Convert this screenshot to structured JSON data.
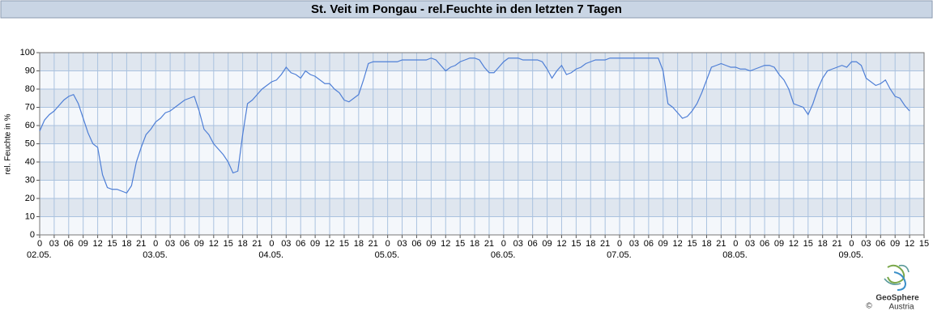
{
  "chart_data": {
    "type": "line",
    "title": "St. Veit im Pongau - rel.Feuchte in den letzten 7 Tagen",
    "y_label": "rel. Feuchte in %",
    "xlim": [
      0,
      183
    ],
    "ylim": [
      0,
      100
    ],
    "yticks": [
      0,
      10,
      20,
      30,
      40,
      50,
      60,
      70,
      80,
      90,
      100
    ],
    "xticks": [
      {
        "value": 0,
        "label": "0"
      },
      {
        "value": 3,
        "label": "03"
      },
      {
        "value": 6,
        "label": "06"
      },
      {
        "value": 9,
        "label": "09"
      },
      {
        "value": 12,
        "label": "12"
      },
      {
        "value": 15,
        "label": "15"
      },
      {
        "value": 18,
        "label": "18"
      },
      {
        "value": 21,
        "label": "21"
      },
      {
        "value": 24,
        "label": "0"
      },
      {
        "value": 27,
        "label": "03"
      },
      {
        "value": 30,
        "label": "06"
      },
      {
        "value": 33,
        "label": "09"
      },
      {
        "value": 36,
        "label": "12"
      },
      {
        "value": 39,
        "label": "15"
      },
      {
        "value": 42,
        "label": "18"
      },
      {
        "value": 45,
        "label": "21"
      },
      {
        "value": 48,
        "label": "0"
      },
      {
        "value": 51,
        "label": "03"
      },
      {
        "value": 54,
        "label": "06"
      },
      {
        "value": 57,
        "label": "09"
      },
      {
        "value": 60,
        "label": "12"
      },
      {
        "value": 63,
        "label": "15"
      },
      {
        "value": 66,
        "label": "18"
      },
      {
        "value": 69,
        "label": "21"
      },
      {
        "value": 72,
        "label": "0"
      },
      {
        "value": 75,
        "label": "03"
      },
      {
        "value": 78,
        "label": "06"
      },
      {
        "value": 81,
        "label": "09"
      },
      {
        "value": 84,
        "label": "12"
      },
      {
        "value": 87,
        "label": "15"
      },
      {
        "value": 90,
        "label": "18"
      },
      {
        "value": 93,
        "label": "21"
      },
      {
        "value": 96,
        "label": "0"
      },
      {
        "value": 99,
        "label": "03"
      },
      {
        "value": 102,
        "label": "06"
      },
      {
        "value": 105,
        "label": "09"
      },
      {
        "value": 108,
        "label": "12"
      },
      {
        "value": 111,
        "label": "15"
      },
      {
        "value": 114,
        "label": "18"
      },
      {
        "value": 117,
        "label": "21"
      },
      {
        "value": 120,
        "label": "0"
      },
      {
        "value": 123,
        "label": "03"
      },
      {
        "value": 126,
        "label": "06"
      },
      {
        "value": 129,
        "label": "09"
      },
      {
        "value": 132,
        "label": "12"
      },
      {
        "value": 135,
        "label": "15"
      },
      {
        "value": 138,
        "label": "18"
      },
      {
        "value": 141,
        "label": "21"
      },
      {
        "value": 144,
        "label": "0"
      },
      {
        "value": 147,
        "label": "03"
      },
      {
        "value": 150,
        "label": "06"
      },
      {
        "value": 153,
        "label": "09"
      },
      {
        "value": 156,
        "label": "12"
      },
      {
        "value": 159,
        "label": "15"
      },
      {
        "value": 162,
        "label": "18"
      },
      {
        "value": 165,
        "label": "21"
      },
      {
        "value": 168,
        "label": "0"
      },
      {
        "value": 171,
        "label": "03"
      },
      {
        "value": 174,
        "label": "06"
      },
      {
        "value": 177,
        "label": "09"
      },
      {
        "value": 180,
        "label": "12"
      },
      {
        "value": 183,
        "label": "15"
      }
    ],
    "date_ticks": [
      {
        "value": 0,
        "label": "02.05."
      },
      {
        "value": 24,
        "label": "03.05."
      },
      {
        "value": 48,
        "label": "04.05."
      },
      {
        "value": 72,
        "label": "05.05."
      },
      {
        "value": 96,
        "label": "06.05."
      },
      {
        "value": 120,
        "label": "07.05."
      },
      {
        "value": 144,
        "label": "08.05."
      },
      {
        "value": 168,
        "label": "09.05."
      }
    ],
    "grid": true,
    "color": "#4f7fd6",
    "x": [
      0,
      1,
      2,
      3,
      4,
      5,
      6,
      7,
      8,
      9,
      10,
      11,
      12,
      13,
      14,
      15,
      16,
      17,
      18,
      19,
      20,
      21,
      22,
      23,
      24,
      25,
      26,
      27,
      28,
      29,
      30,
      31,
      32,
      33,
      34,
      35,
      36,
      37,
      38,
      39,
      40,
      41,
      42,
      43,
      44,
      45,
      46,
      47,
      48,
      49,
      50,
      51,
      52,
      53,
      54,
      55,
      56,
      57,
      58,
      59,
      60,
      61,
      62,
      63,
      64,
      65,
      66,
      67,
      68,
      69,
      70,
      71,
      72,
      73,
      74,
      75,
      76,
      77,
      78,
      79,
      80,
      81,
      82,
      83,
      84,
      85,
      86,
      87,
      88,
      89,
      90,
      91,
      92,
      93,
      94,
      95,
      96,
      97,
      98,
      99,
      100,
      101,
      102,
      103,
      104,
      105,
      106,
      107,
      108,
      109,
      110,
      111,
      112,
      113,
      114,
      115,
      116,
      117,
      118,
      119,
      120,
      121,
      122,
      123,
      124,
      125,
      126,
      127,
      128,
      129,
      130,
      131,
      132,
      133,
      134,
      135,
      136,
      137,
      138,
      139,
      140,
      141,
      142,
      143,
      144,
      145,
      146,
      147,
      148,
      149,
      150,
      151,
      152,
      153,
      154,
      155,
      156,
      157,
      158,
      159,
      160,
      161,
      162,
      163,
      164,
      165,
      166,
      167,
      168,
      169,
      170,
      171,
      172,
      173,
      174,
      175,
      176,
      177,
      178,
      179,
      180
    ],
    "values": [
      57,
      63,
      66,
      68,
      71,
      74,
      76,
      77,
      72,
      64,
      56,
      50,
      48,
      33,
      26,
      25,
      25,
      24,
      23,
      27,
      40,
      48,
      55,
      58,
      62,
      64,
      67,
      68,
      70,
      72,
      74,
      75,
      76,
      68,
      58,
      55,
      50,
      47,
      44,
      40,
      34,
      35,
      55,
      72,
      74,
      77,
      80,
      82,
      84,
      85,
      88,
      92,
      89,
      88,
      86,
      90,
      88,
      87,
      85,
      83,
      83,
      80,
      78,
      74,
      73,
      75,
      77,
      85,
      94,
      95,
      95,
      95,
      95,
      95,
      95,
      96,
      96,
      96,
      96,
      96,
      96,
      97,
      96,
      93,
      90,
      92,
      93,
      95,
      96,
      97,
      97,
      96,
      92,
      89,
      89,
      92,
      95,
      97,
      97,
      97,
      96,
      96,
      96,
      96,
      95,
      91,
      86,
      90,
      93,
      88,
      89,
      91,
      92,
      94,
      95,
      96,
      96,
      96,
      97,
      97,
      97,
      97,
      97,
      97,
      97,
      97,
      97,
      97,
      97,
      90,
      72,
      70,
      67,
      64,
      65,
      68,
      72,
      78,
      85,
      92,
      93,
      94,
      93,
      92,
      92,
      91,
      91,
      90,
      91,
      92,
      93,
      93,
      92,
      88,
      85,
      80,
      72,
      71,
      70,
      66,
      72,
      80,
      86,
      90,
      91,
      92,
      93,
      92,
      95,
      95,
      93,
      86,
      84,
      82,
      83,
      85,
      80,
      76,
      75,
      71,
      68
    ]
  },
  "logo": {
    "name": "GeoSphere",
    "sub": "Austria",
    "copyright": "©"
  }
}
